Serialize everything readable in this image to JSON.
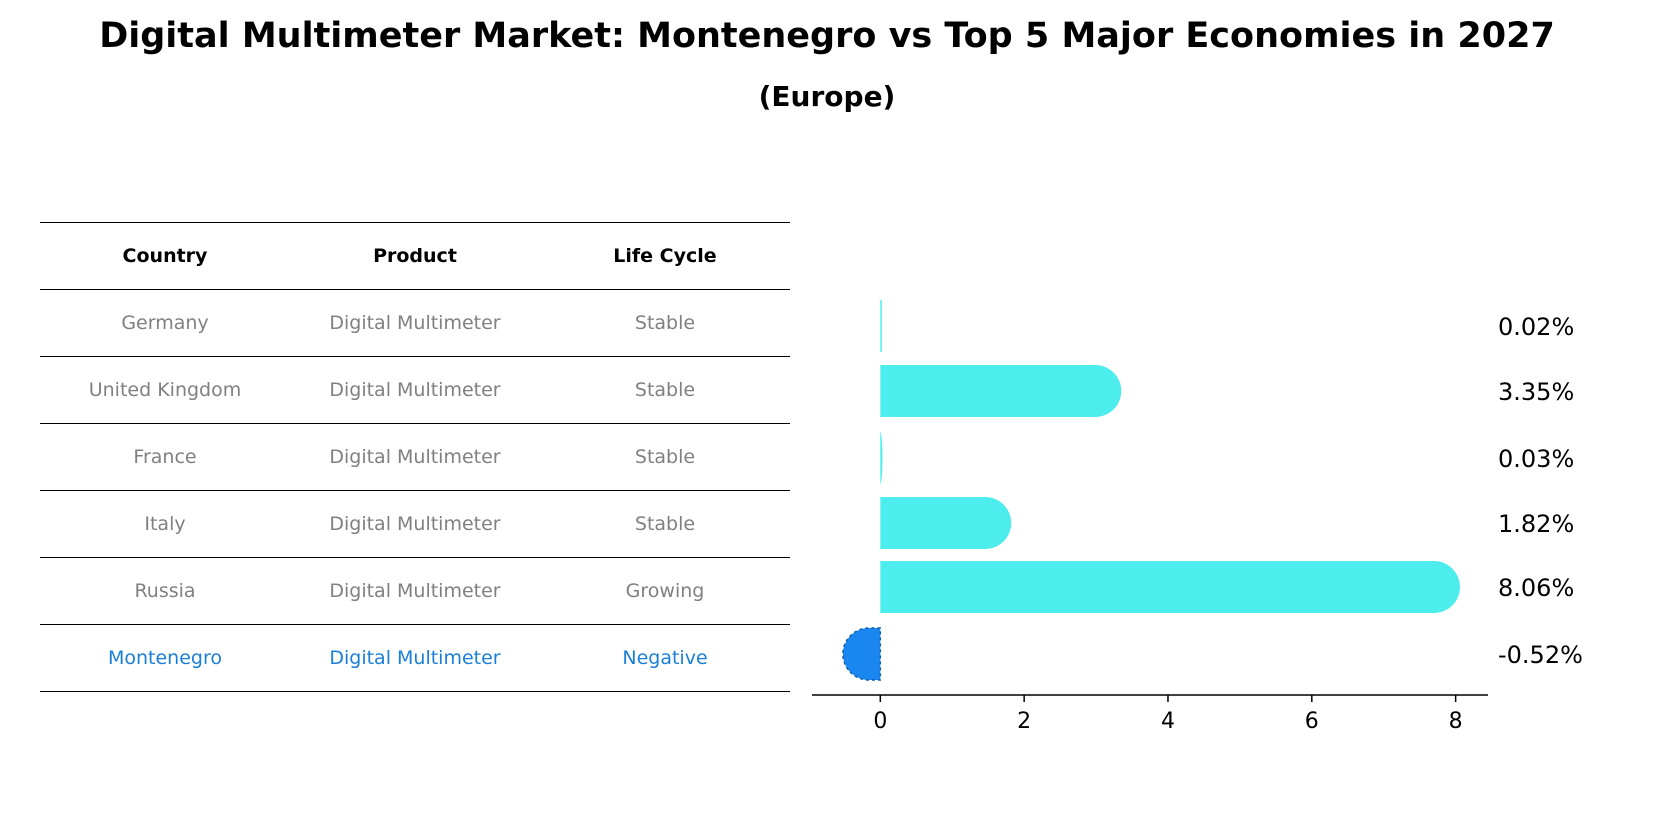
{
  "title": "Digital Multimeter Market: Montenegro vs Top 5 Major Economies in 2027",
  "subtitle": "(Europe)",
  "table": {
    "headers": [
      "Country",
      "Product",
      "Life Cycle"
    ],
    "rows": [
      {
        "country": "Germany",
        "product": "Digital Multimeter",
        "life_cycle": "Stable"
      },
      {
        "country": "United Kingdom",
        "product": "Digital Multimeter",
        "life_cycle": "Stable"
      },
      {
        "country": "France",
        "product": "Digital Multimeter",
        "life_cycle": "Stable"
      },
      {
        "country": "Italy",
        "product": "Digital Multimeter",
        "life_cycle": "Stable"
      },
      {
        "country": "Russia",
        "product": "Digital Multimeter",
        "life_cycle": "Growing"
      },
      {
        "country": "Montenegro",
        "product": "Digital Multimeter",
        "life_cycle": "Negative"
      }
    ],
    "highlight_color": "#1a7fd6",
    "muted_color": "#808080"
  },
  "chart_data": {
    "type": "bar",
    "orientation": "horizontal",
    "categories": [
      "Germany",
      "United Kingdom",
      "France",
      "Italy",
      "Russia",
      "Montenegro"
    ],
    "values": [
      0.02,
      3.35,
      0.03,
      1.82,
      8.06,
      -0.52
    ],
    "value_labels": [
      "0.02%",
      "3.35%",
      "0.03%",
      "1.82%",
      "8.06%",
      "-0.52%"
    ],
    "xlim": [
      -0.95,
      8.45
    ],
    "xticks": [
      0,
      2,
      4,
      6,
      8
    ],
    "colors": {
      "positive": "#4deded",
      "negative": "#1a87f0"
    }
  }
}
